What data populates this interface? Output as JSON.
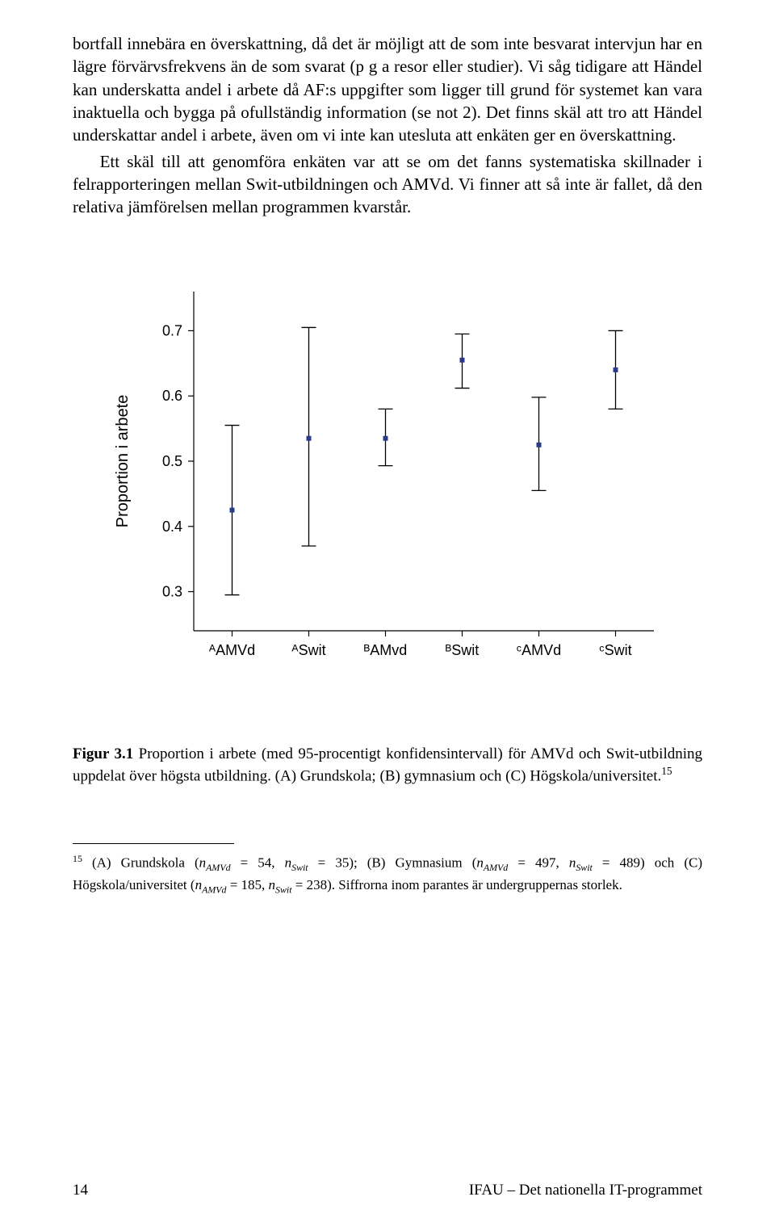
{
  "paragraphs": {
    "p1": "bortfall innebära en överskattning, då det är möjligt att de som inte besvarat intervjun har en lägre förvärvsfrekvens än de som svarat (p g a resor eller studier). Vi såg tidigare att Händel kan underskatta andel i arbete då AF:s uppgifter som ligger till grund för systemet kan vara inaktuella och bygga på ofullständig information (se not 2). Det finns skäl att tro att Händel underskattar andel i arbete, även om vi inte kan utesluta att enkäten ger en överskattning.",
    "p2": "Ett skäl till att genomföra enkäten var att se om det fanns systematiska skillnader i felrapporteringen mellan Swit-utbildningen och AMVd. Vi finner att så inte är fallet, då den relativa jämförelsen mellan programmen kvarstår."
  },
  "chart": {
    "type": "scatter-with-errorbars",
    "background_color": "#ffffff",
    "axis_color": "#000000",
    "tick_fontsize": 18,
    "ylabel": "Proportion i arbete",
    "ylabel_fontsize": 20,
    "ylim": [
      0.24,
      0.76
    ],
    "yticks": [
      0.3,
      0.4,
      0.5,
      0.6,
      0.7
    ],
    "xcats": [
      "ᴬAMVd",
      "ᴬSwit",
      "ᴮAMvd",
      "ᴮSwit",
      "ᶜAMVd",
      "ᶜSwit"
    ],
    "marker_color": "#2a3a8a",
    "marker_size": 6,
    "errorbar_color": "#000000",
    "errorbar_width": 1.3,
    "cap_halfwidth": 9,
    "points": [
      {
        "x": 0,
        "mean": 0.425,
        "low": 0.295,
        "high": 0.555
      },
      {
        "x": 1,
        "mean": 0.535,
        "low": 0.37,
        "high": 0.705
      },
      {
        "x": 2,
        "mean": 0.535,
        "low": 0.493,
        "high": 0.58
      },
      {
        "x": 3,
        "mean": 0.655,
        "low": 0.612,
        "high": 0.695
      },
      {
        "x": 4,
        "mean": 0.525,
        "low": 0.455,
        "high": 0.598
      },
      {
        "x": 5,
        "mean": 0.64,
        "low": 0.58,
        "high": 0.7
      }
    ]
  },
  "caption": {
    "label": "Figur 3.1",
    "text_a": " Proportion i arbete (med 95-procentigt konfidensintervall) för AMVd och Swit-utbildning uppdelat över högsta utbildning. (A) Grundskola; (B) gymnasium och (C) Högskola/universitet.",
    "sup": "15"
  },
  "footnote": {
    "num": "15",
    "seg1": " (A) Grundskola (",
    "n": "n",
    "sub_amvd": "AMVd",
    "eq": " = ",
    "v1": "54",
    "comma": ", ",
    "sub_swit": "Swit",
    "v2": "35",
    "seg2": "); (B) Gymnasium (",
    "v3": "497",
    "v4": "489",
    "seg3": ") och (C) Högskola/universitet (",
    "v5": "185",
    "v6": "238",
    "seg4": "). Siffrorna inom parantes är undergruppernas storlek."
  },
  "footer": {
    "page": "14",
    "runner": "IFAU – Det nationella IT-programmet"
  }
}
